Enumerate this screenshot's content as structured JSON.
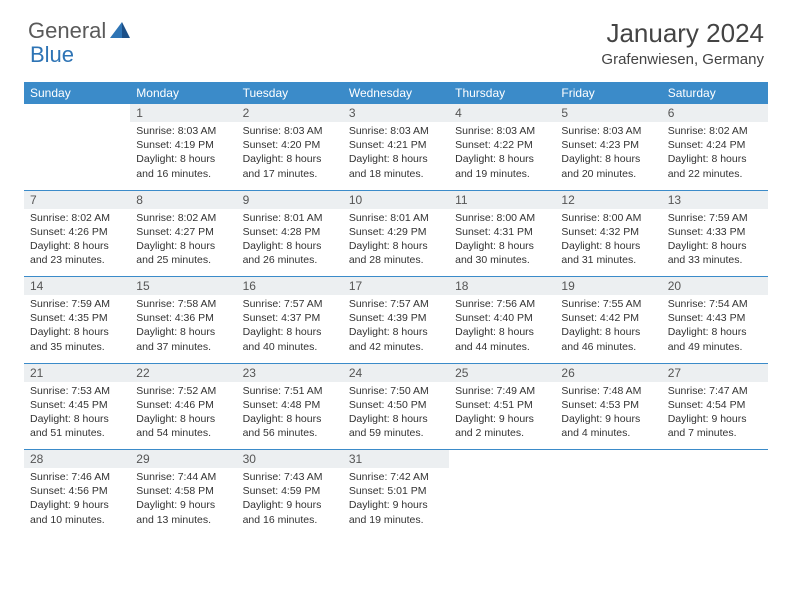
{
  "brand": {
    "part1": "General",
    "part2": "Blue"
  },
  "title": "January 2024",
  "location": "Grafenwiesen, Germany",
  "colors": {
    "header_bg": "#3b8bc9",
    "header_text": "#ffffff",
    "daynum_bg": "#eceff1",
    "border": "#3b8bc9",
    "brand_gray": "#5a5a5a",
    "brand_blue": "#2e74b5"
  },
  "day_headers": [
    "Sunday",
    "Monday",
    "Tuesday",
    "Wednesday",
    "Thursday",
    "Friday",
    "Saturday"
  ],
  "weeks": [
    [
      {
        "n": "",
        "t": ""
      },
      {
        "n": "1",
        "t": "Sunrise: 8:03 AM\nSunset: 4:19 PM\nDaylight: 8 hours and 16 minutes."
      },
      {
        "n": "2",
        "t": "Sunrise: 8:03 AM\nSunset: 4:20 PM\nDaylight: 8 hours and 17 minutes."
      },
      {
        "n": "3",
        "t": "Sunrise: 8:03 AM\nSunset: 4:21 PM\nDaylight: 8 hours and 18 minutes."
      },
      {
        "n": "4",
        "t": "Sunrise: 8:03 AM\nSunset: 4:22 PM\nDaylight: 8 hours and 19 minutes."
      },
      {
        "n": "5",
        "t": "Sunrise: 8:03 AM\nSunset: 4:23 PM\nDaylight: 8 hours and 20 minutes."
      },
      {
        "n": "6",
        "t": "Sunrise: 8:02 AM\nSunset: 4:24 PM\nDaylight: 8 hours and 22 minutes."
      }
    ],
    [
      {
        "n": "7",
        "t": "Sunrise: 8:02 AM\nSunset: 4:26 PM\nDaylight: 8 hours and 23 minutes."
      },
      {
        "n": "8",
        "t": "Sunrise: 8:02 AM\nSunset: 4:27 PM\nDaylight: 8 hours and 25 minutes."
      },
      {
        "n": "9",
        "t": "Sunrise: 8:01 AM\nSunset: 4:28 PM\nDaylight: 8 hours and 26 minutes."
      },
      {
        "n": "10",
        "t": "Sunrise: 8:01 AM\nSunset: 4:29 PM\nDaylight: 8 hours and 28 minutes."
      },
      {
        "n": "11",
        "t": "Sunrise: 8:00 AM\nSunset: 4:31 PM\nDaylight: 8 hours and 30 minutes."
      },
      {
        "n": "12",
        "t": "Sunrise: 8:00 AM\nSunset: 4:32 PM\nDaylight: 8 hours and 31 minutes."
      },
      {
        "n": "13",
        "t": "Sunrise: 7:59 AM\nSunset: 4:33 PM\nDaylight: 8 hours and 33 minutes."
      }
    ],
    [
      {
        "n": "14",
        "t": "Sunrise: 7:59 AM\nSunset: 4:35 PM\nDaylight: 8 hours and 35 minutes."
      },
      {
        "n": "15",
        "t": "Sunrise: 7:58 AM\nSunset: 4:36 PM\nDaylight: 8 hours and 37 minutes."
      },
      {
        "n": "16",
        "t": "Sunrise: 7:57 AM\nSunset: 4:37 PM\nDaylight: 8 hours and 40 minutes."
      },
      {
        "n": "17",
        "t": "Sunrise: 7:57 AM\nSunset: 4:39 PM\nDaylight: 8 hours and 42 minutes."
      },
      {
        "n": "18",
        "t": "Sunrise: 7:56 AM\nSunset: 4:40 PM\nDaylight: 8 hours and 44 minutes."
      },
      {
        "n": "19",
        "t": "Sunrise: 7:55 AM\nSunset: 4:42 PM\nDaylight: 8 hours and 46 minutes."
      },
      {
        "n": "20",
        "t": "Sunrise: 7:54 AM\nSunset: 4:43 PM\nDaylight: 8 hours and 49 minutes."
      }
    ],
    [
      {
        "n": "21",
        "t": "Sunrise: 7:53 AM\nSunset: 4:45 PM\nDaylight: 8 hours and 51 minutes."
      },
      {
        "n": "22",
        "t": "Sunrise: 7:52 AM\nSunset: 4:46 PM\nDaylight: 8 hours and 54 minutes."
      },
      {
        "n": "23",
        "t": "Sunrise: 7:51 AM\nSunset: 4:48 PM\nDaylight: 8 hours and 56 minutes."
      },
      {
        "n": "24",
        "t": "Sunrise: 7:50 AM\nSunset: 4:50 PM\nDaylight: 8 hours and 59 minutes."
      },
      {
        "n": "25",
        "t": "Sunrise: 7:49 AM\nSunset: 4:51 PM\nDaylight: 9 hours and 2 minutes."
      },
      {
        "n": "26",
        "t": "Sunrise: 7:48 AM\nSunset: 4:53 PM\nDaylight: 9 hours and 4 minutes."
      },
      {
        "n": "27",
        "t": "Sunrise: 7:47 AM\nSunset: 4:54 PM\nDaylight: 9 hours and 7 minutes."
      }
    ],
    [
      {
        "n": "28",
        "t": "Sunrise: 7:46 AM\nSunset: 4:56 PM\nDaylight: 9 hours and 10 minutes."
      },
      {
        "n": "29",
        "t": "Sunrise: 7:44 AM\nSunset: 4:58 PM\nDaylight: 9 hours and 13 minutes."
      },
      {
        "n": "30",
        "t": "Sunrise: 7:43 AM\nSunset: 4:59 PM\nDaylight: 9 hours and 16 minutes."
      },
      {
        "n": "31",
        "t": "Sunrise: 7:42 AM\nSunset: 5:01 PM\nDaylight: 9 hours and 19 minutes."
      },
      {
        "n": "",
        "t": ""
      },
      {
        "n": "",
        "t": ""
      },
      {
        "n": "",
        "t": ""
      }
    ]
  ]
}
